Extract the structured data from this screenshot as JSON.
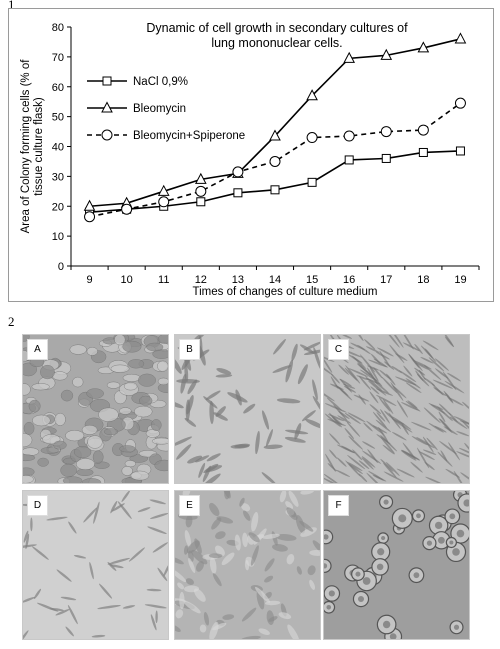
{
  "figure": {
    "part1_label": "1",
    "part2_label": "2"
  },
  "chart_data": {
    "type": "line",
    "title": "Dynamic of cell growth in secondary cultures of lung mononuclear cells.",
    "title_lines": [
      "Dynamic of cell growth in secondary cultures of",
      "lung mononuclear cells."
    ],
    "xlabel": "Times of changes of culture medium",
    "ylabel": "Area of Colony forming cells (% of tissue culture flask)",
    "ylabel_lines": [
      "Area of Colony forming cells (% of",
      "tissue culture flask)"
    ],
    "x": [
      9,
      10,
      11,
      12,
      13,
      14,
      15,
      16,
      17,
      18,
      19
    ],
    "ylim": [
      0,
      80
    ],
    "yticks": [
      0,
      10,
      20,
      30,
      40,
      50,
      60,
      70,
      80
    ],
    "grid": false,
    "legend_position": "top-left",
    "series": [
      {
        "name": "NaCl 0,9%",
        "marker": "square",
        "dash": "solid",
        "values": [
          18,
          19,
          20,
          21.5,
          24.5,
          25.5,
          28,
          35.5,
          36,
          38,
          38.5
        ]
      },
      {
        "name": "Bleomycin",
        "marker": "triangle",
        "dash": "solid",
        "values": [
          20,
          21,
          25,
          29,
          31,
          43.5,
          57,
          69.5,
          70.5,
          73,
          76
        ]
      },
      {
        "name": "Bleomycin+Spiperone",
        "marker": "circle",
        "dash": "dashed",
        "values": [
          16.5,
          19,
          21.5,
          25,
          31.5,
          35,
          43,
          43.5,
          45,
          45.5,
          54.5
        ]
      }
    ]
  },
  "panels": [
    {
      "label": "A",
      "texture": "cobblestone"
    },
    {
      "label": "B",
      "texture": "scattered-spindle"
    },
    {
      "label": "C",
      "texture": "dense-fibroblast"
    },
    {
      "label": "D",
      "texture": "sparse-spindle"
    },
    {
      "label": "E",
      "texture": "mixed-cells"
    },
    {
      "label": "F",
      "texture": "round-colonies"
    }
  ]
}
